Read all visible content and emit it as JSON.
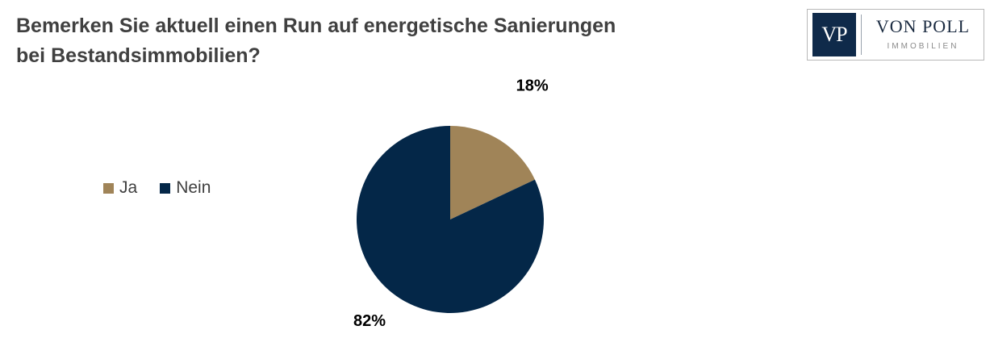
{
  "title": {
    "line1": "Bemerken Sie aktuell einen Run auf energetische Sanierungen",
    "line2": "bei Bestandsimmobilien?"
  },
  "logo": {
    "mark": "VP",
    "name": "VON POLL",
    "subtitle": "IMMOBILIEN",
    "color": "#0f2a4a"
  },
  "chart_data": {
    "type": "pie",
    "title": "Bemerken Sie aktuell einen Run auf energetische Sanierungen bei Bestandsimmobilien?",
    "categories": [
      "Ja",
      "Nein"
    ],
    "values": [
      18,
      82
    ],
    "labels": [
      "18%",
      "82%"
    ],
    "colors": [
      "#a08458",
      "#042748"
    ],
    "legend_position": "left",
    "start_angle": "12 o'clock, clockwise"
  }
}
